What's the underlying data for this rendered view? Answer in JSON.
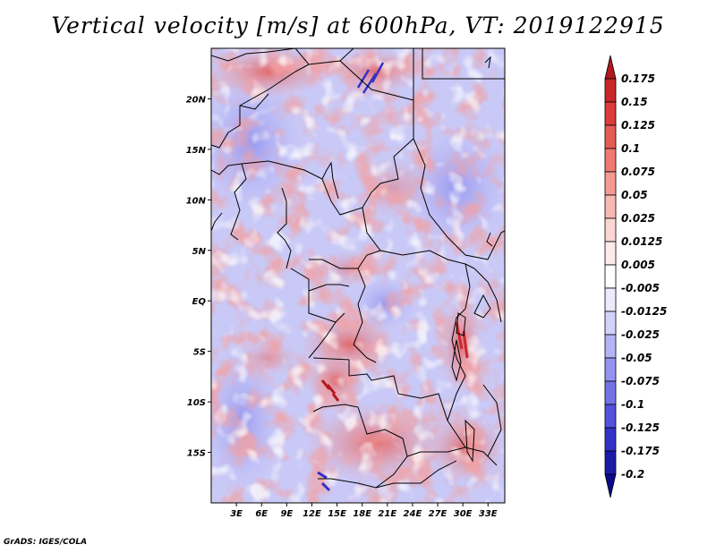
{
  "title": "Vertical velocity [m/s] at 600hPa, VT: 2019122915",
  "credit": "GrADS: IGES/COLA",
  "map": {
    "lon_range": [
      0,
      35
    ],
    "lat_range": [
      -20,
      25
    ],
    "lat_ticks": [
      {
        "value": 20,
        "label": "20N"
      },
      {
        "value": 15,
        "label": "15N"
      },
      {
        "value": 10,
        "label": "10N"
      },
      {
        "value": 5,
        "label": "5N"
      },
      {
        "value": 0,
        "label": "EQ"
      },
      {
        "value": -5,
        "label": "5S"
      },
      {
        "value": -10,
        "label": "10S"
      },
      {
        "value": -15,
        "label": "15S"
      }
    ],
    "lon_ticks": [
      {
        "value": 3,
        "label": "3E"
      },
      {
        "value": 6,
        "label": "6E"
      },
      {
        "value": 9,
        "label": "9E"
      },
      {
        "value": 12,
        "label": "12E"
      },
      {
        "value": 15,
        "label": "15E"
      },
      {
        "value": 18,
        "label": "18E"
      },
      {
        "value": 21,
        "label": "21E"
      },
      {
        "value": 24,
        "label": "24E"
      },
      {
        "value": 27,
        "label": "27E"
      },
      {
        "value": 30,
        "label": "30E"
      },
      {
        "value": 33,
        "label": "33E"
      }
    ]
  },
  "colorbar": {
    "labels": [
      "0.175",
      "0.15",
      "0.125",
      "0.1",
      "0.075",
      "0.05",
      "0.025",
      "0.0125",
      "0.005",
      "-0.005",
      "-0.0125",
      "-0.025",
      "-0.05",
      "-0.075",
      "-0.1",
      "-0.125",
      "-0.175",
      "-0.2"
    ],
    "colors": [
      "#b0181e",
      "#c8282b",
      "#dc3c3a",
      "#e75b55",
      "#f07a72",
      "#f59a92",
      "#f8b9b2",
      "#fbd6d2",
      "#fdebe9",
      "#ffffff",
      "#ebebfd",
      "#d2d2fb",
      "#b3b3f6",
      "#9494f0",
      "#7373e6",
      "#5252dc",
      "#3131c8",
      "#1a1aa8",
      "#0b0b8a"
    ]
  }
}
